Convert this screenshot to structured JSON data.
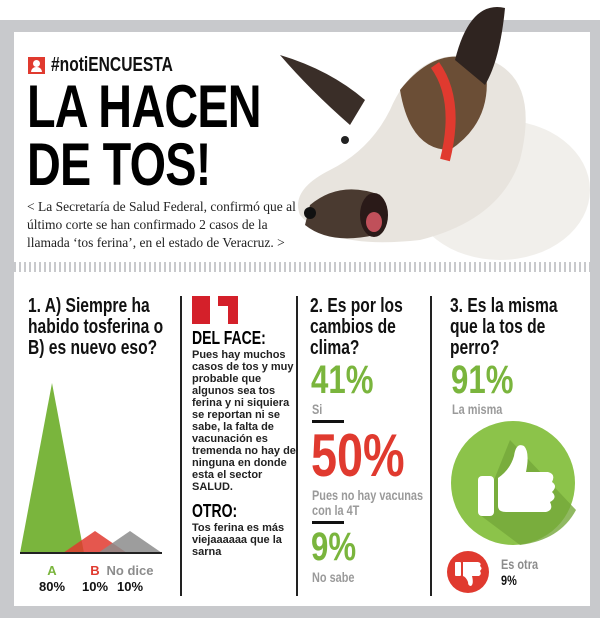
{
  "header": {
    "hashtag": "#notiENCUESTA",
    "title_line1": "LA HACEN",
    "title_line2": "DE TOS!",
    "lede": "< La Secretaría de Salud Federal, confirmó que al último corte se han confirmado 2 casos de la llamada ‘tos ferina’, en el estado de Veracruz. >"
  },
  "colors": {
    "green": "#7ab53d",
    "red": "#e03a2f",
    "gray": "#8c8c8c",
    "frame": "#c8c9cc"
  },
  "q1": {
    "question": "1. A) Siempre ha habido tosferina o B) es nuevo eso?",
    "chart_data": {
      "type": "area",
      "categories": [
        "A",
        "B",
        "No dice"
      ],
      "values": [
        80,
        10,
        10
      ],
      "labels": [
        "80%",
        "10%",
        "10%"
      ]
    }
  },
  "comments": {
    "icon": "quote-icon",
    "face_title": "DEL FACE:",
    "face_text": "Pues hay muchos casos de tos y muy probable que algunos sea tos ferina y ni siquiera se reportan ni se sabe, la falta de vacunación es tremenda no hay de ninguna en donde esta el sector SALUD.",
    "other_title": "OTRO:",
    "other_text": "Tos ferina es más viejaaaaaa que la sarna"
  },
  "q2": {
    "question": "2. Es por los cambios de clima?",
    "answers": [
      {
        "value": "41%",
        "label": "Si"
      },
      {
        "value": "50%",
        "label": "Pues no hay vacunas con la 4T"
      },
      {
        "value": "9%",
        "label": "No sabe"
      }
    ]
  },
  "q3": {
    "question": "3. Es la misma que la tos de perro?",
    "yes": {
      "value": "91%",
      "label": "La misma",
      "icon": "thumbs-up-icon"
    },
    "no": {
      "label": "Es otra",
      "value": "9%",
      "icon": "thumbs-down-icon"
    }
  }
}
